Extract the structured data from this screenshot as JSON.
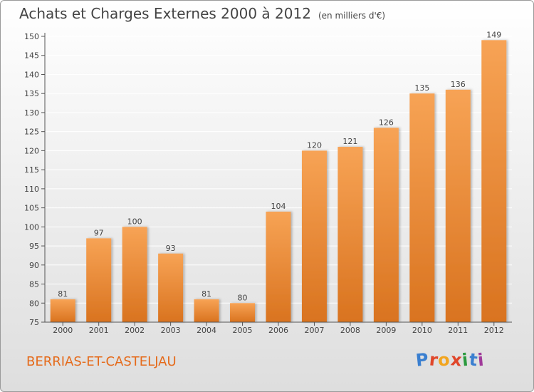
{
  "title": "Achats et Charges Externes 2000 à 2012",
  "unit": "(en milliers d'€)",
  "commune": "BERRIAS-ET-CASTELJAU",
  "logo": {
    "text": "Proxiti",
    "letters": [
      "P",
      "r",
      "o",
      "x",
      "i",
      "t",
      "i"
    ],
    "colors": [
      "#3a7fd0",
      "#e0462a",
      "#f2a51f",
      "#e0462a",
      "#2b9a3e",
      "#3a7fd0",
      "#a03a9a"
    ]
  },
  "colors": {
    "bar_top": "#f7a355",
    "bar_bottom": "#d9731f",
    "axis": "#555555",
    "grid": "#ffffff",
    "text": "#444444",
    "commune_text": "#e56a1a"
  },
  "chart_data": {
    "type": "bar",
    "categories": [
      "2000",
      "2001",
      "2002",
      "2003",
      "2004",
      "2005",
      "2006",
      "2007",
      "2008",
      "2009",
      "2010",
      "2011",
      "2012"
    ],
    "values": [
      81,
      97,
      100,
      93,
      81,
      80,
      104,
      120,
      121,
      126,
      135,
      136,
      149
    ],
    "title": "Achats et Charges Externes 2000 à 2012",
    "xlabel": "",
    "ylabel": "",
    "ylim": [
      75,
      150
    ],
    "yticks": [
      75,
      80,
      85,
      90,
      95,
      100,
      105,
      110,
      115,
      120,
      125,
      130,
      135,
      140,
      145,
      150
    ],
    "grid": true,
    "data_labels": true
  }
}
